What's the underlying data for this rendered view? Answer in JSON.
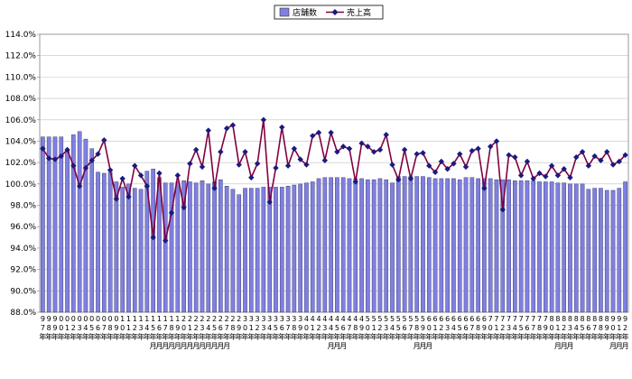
{
  "chart_data": {
    "type": "bar",
    "ylim": [
      88,
      114
    ],
    "y_ticks": [
      "88.0%",
      "90.0%",
      "92.0%",
      "94.0%",
      "96.0%",
      "98.0%",
      "100.0%",
      "102.0%",
      "104.0%",
      "106.0%",
      "108.0%",
      "110.0%",
      "112.0%",
      "114.0%"
    ],
    "grid": true,
    "legend_position": "top-center",
    "categories": [
      "97",
      "98",
      "99",
      "00",
      "01",
      "02",
      "03",
      "04",
      "05",
      "06",
      "07",
      "08",
      "09",
      "10",
      "11",
      "12",
      "13",
      "14",
      "15",
      "16",
      "17",
      "18",
      "19",
      "20",
      "21",
      "22",
      "23",
      "24",
      "25",
      "26",
      "27",
      "28",
      "29",
      "30",
      "31",
      "32",
      "33",
      "34",
      "35",
      "36",
      "37",
      "38",
      "39",
      "40",
      "41",
      "42",
      "43",
      "44",
      "45",
      "46",
      "47",
      "48",
      "49",
      "50",
      "51",
      "52",
      "53",
      "54",
      "55",
      "56",
      "57",
      "58",
      "59",
      "60",
      "61",
      "62",
      "63",
      "64",
      "65",
      "66",
      "67",
      "68",
      "69",
      "70",
      "71",
      "72",
      "73",
      "74",
      "75",
      "76",
      "77",
      "78",
      "79",
      "80",
      "81",
      "82",
      "83",
      "84",
      "85",
      "86",
      "87",
      "88",
      "89",
      "90",
      "91",
      "92"
    ],
    "x_labels": [
      {
        "chars": [
          "9",
          "7",
          "年"
        ]
      },
      {
        "chars": [
          "9",
          "8",
          "年"
        ]
      },
      {
        "chars": [
          "9",
          "9",
          "年"
        ]
      },
      {
        "chars": [
          "0",
          "0",
          "年"
        ]
      },
      {
        "chars": [
          "0",
          "1",
          "年"
        ]
      },
      {
        "chars": [
          "0",
          "2",
          "年"
        ]
      },
      {
        "chars": [
          "0",
          "3",
          "年"
        ]
      },
      {
        "chars": [
          "0",
          "4",
          "年"
        ]
      },
      {
        "chars": [
          "0",
          "5",
          "年"
        ]
      },
      {
        "chars": [
          "0",
          "6",
          "年"
        ]
      },
      {
        "chars": [
          "0",
          "7",
          "年"
        ]
      },
      {
        "chars": [
          "0",
          "8",
          "年"
        ]
      },
      {
        "chars": [
          "0",
          "9",
          "年"
        ]
      },
      {
        "chars": [
          "1",
          "0",
          "年"
        ]
      },
      {
        "chars": [
          "1",
          "1",
          "年"
        ]
      },
      {
        "chars": [
          "1",
          "2",
          "年"
        ]
      },
      {
        "chars": [
          "1",
          "3",
          "年"
        ]
      },
      {
        "chars": [
          "1",
          "4",
          "年"
        ]
      },
      {
        "chars": [
          "1",
          "5",
          "年"
        ]
      },
      {
        "chars": [
          "1",
          "6",
          "年"
        ]
      },
      {
        "chars": [
          "1",
          "7",
          "年"
        ]
      },
      {
        "chars": [
          "1",
          "8",
          "年"
        ]
      },
      {
        "chars": [
          "1",
          "9",
          "年"
        ]
      },
      {
        "chars": [
          "2",
          "0",
          "年"
        ]
      },
      {
        "chars": [
          "2",
          "1",
          "年"
        ]
      },
      {
        "chars": [
          "2",
          "2",
          "年"
        ]
      },
      {
        "chars": [
          "2",
          "3",
          "年"
        ]
      },
      {
        "chars": [
          "2",
          "4",
          "年"
        ]
      },
      {
        "chars": [
          "2",
          "5",
          "年"
        ]
      },
      {
        "chars": [
          "2",
          "6",
          "年"
        ]
      },
      {
        "chars": [
          "2",
          "7",
          "年"
        ]
      },
      {
        "chars": [
          "2",
          "8",
          "年"
        ]
      },
      {
        "chars": [
          "2",
          "9",
          "年"
        ]
      },
      {
        "chars": [
          "3",
          "0",
          "年"
        ]
      },
      {
        "chars": [
          "3",
          "1",
          "年"
        ]
      },
      {
        "chars": [
          "3",
          "2",
          "年"
        ]
      },
      {
        "chars": [
          "3",
          "3",
          "年"
        ]
      },
      {
        "chars": [
          "3",
          "4",
          "年"
        ]
      },
      {
        "chars": [
          "3",
          "5",
          "年"
        ]
      },
      {
        "chars": [
          "3",
          "6",
          "年"
        ]
      },
      {
        "chars": [
          "3",
          "7",
          "年"
        ]
      },
      {
        "chars": [
          "3",
          "8",
          "年"
        ]
      },
      {
        "chars": [
          "3",
          "9",
          "年"
        ]
      },
      {
        "chars": [
          "4",
          "0",
          "年"
        ]
      },
      {
        "chars": [
          "4",
          "1",
          "年"
        ]
      },
      {
        "chars": [
          "4",
          "2",
          "年"
        ]
      },
      {
        "chars": [
          "4",
          "3",
          "年"
        ]
      },
      {
        "chars": [
          "4",
          "4",
          "年"
        ]
      },
      {
        "chars": [
          "4",
          "5",
          "年"
        ]
      },
      {
        "chars": [
          "4",
          "6",
          "年"
        ]
      },
      {
        "chars": [
          "4",
          "7",
          "年"
        ]
      },
      {
        "chars": [
          "4",
          "8",
          "年"
        ]
      },
      {
        "chars": [
          "4",
          "9",
          "年"
        ]
      },
      {
        "chars": [
          "5",
          "0",
          "年"
        ]
      },
      {
        "chars": [
          "5",
          "1",
          "年"
        ]
      },
      {
        "chars": [
          "5",
          "2",
          "年"
        ]
      },
      {
        "chars": [
          "5",
          "3",
          "年"
        ]
      },
      {
        "chars": [
          "5",
          "4",
          "年"
        ]
      },
      {
        "chars": [
          "5",
          "5",
          "年"
        ]
      },
      {
        "chars": [
          "5",
          "6",
          "年"
        ]
      },
      {
        "chars": [
          "5",
          "7",
          "年"
        ]
      },
      {
        "chars": [
          "5",
          "8",
          "年"
        ]
      },
      {
        "chars": [
          "5",
          "9",
          "年"
        ]
      },
      {
        "chars": [
          "6",
          "0",
          "年"
        ]
      },
      {
        "chars": [
          "6",
          "1",
          "年"
        ]
      },
      {
        "chars": [
          "6",
          "2",
          "年"
        ]
      },
      {
        "chars": [
          "6",
          "3",
          "年"
        ]
      },
      {
        "chars": [
          "6",
          "4",
          "年"
        ]
      },
      {
        "chars": [
          "6",
          "5",
          "年"
        ]
      },
      {
        "chars": [
          "6",
          "6",
          "年"
        ]
      },
      {
        "chars": [
          "6",
          "7",
          "年"
        ]
      },
      {
        "chars": [
          "6",
          "8",
          "年"
        ]
      },
      {
        "chars": [
          "6",
          "9",
          "年"
        ]
      },
      {
        "chars": [
          "7",
          "0",
          "年"
        ]
      },
      {
        "chars": [
          "7",
          "1",
          "年"
        ]
      },
      {
        "chars": [
          "7",
          "2",
          "年"
        ]
      },
      {
        "chars": [
          "7",
          "3",
          "年"
        ]
      },
      {
        "chars": [
          "7",
          "4",
          "年"
        ]
      },
      {
        "chars": [
          "7",
          "5",
          "年"
        ]
      },
      {
        "chars": [
          "7",
          "6",
          "年"
        ]
      },
      {
        "chars": [
          "7",
          "7",
          "年"
        ]
      },
      {
        "chars": [
          "7",
          "8",
          "年"
        ]
      },
      {
        "chars": [
          "7",
          "9",
          "年"
        ]
      },
      {
        "chars": [
          "8",
          "0",
          "年"
        ]
      },
      {
        "chars": [
          "8",
          "1",
          "年"
        ]
      },
      {
        "chars": [
          "8",
          "2",
          "年"
        ]
      },
      {
        "chars": [
          "8",
          "3",
          "年"
        ]
      },
      {
        "chars": [
          "8",
          "4",
          "年"
        ]
      },
      {
        "chars": [
          "8",
          "5",
          "年"
        ]
      },
      {
        "chars": [
          "8",
          "6",
          "年"
        ]
      },
      {
        "chars": [
          "8",
          "7",
          "年"
        ]
      },
      {
        "chars": [
          "8",
          "8",
          "年"
        ]
      },
      {
        "chars": [
          "8",
          "9",
          "年"
        ]
      },
      {
        "chars": [
          "9",
          "0",
          "年"
        ]
      },
      {
        "chars": [
          "9",
          "1",
          "年"
        ]
      },
      {
        "chars": [
          "9",
          "2",
          "年"
        ]
      }
    ],
    "series": [
      {
        "name": "店舗数",
        "kind": "bar",
        "color": "#8080e0",
        "values": [
          104.4,
          104.4,
          104.4,
          104.4,
          103.2,
          104.6,
          104.9,
          104.2,
          103.3,
          101.1,
          101.0,
          101.1,
          100.2,
          99.7,
          100.0,
          99.6,
          99.5,
          101.2,
          101.4,
          100.6,
          100.1,
          100.1,
          100.2,
          100.3,
          100.2,
          100.1,
          100.3,
          100.0,
          100.2,
          100.4,
          99.8,
          99.5,
          99.0,
          99.6,
          99.6,
          99.6,
          99.7,
          99.7,
          99.7,
          99.7,
          99.8,
          99.9,
          100.0,
          100.1,
          100.2,
          100.5,
          100.6,
          100.6,
          100.6,
          100.6,
          100.5,
          100.5,
          100.5,
          100.4,
          100.4,
          100.5,
          100.4,
          100.1,
          100.7,
          100.7,
          100.7,
          100.7,
          100.7,
          100.6,
          100.5,
          100.5,
          100.5,
          100.5,
          100.4,
          100.6,
          100.6,
          100.5,
          100.5,
          100.5,
          100.4,
          100.4,
          100.4,
          100.3,
          100.3,
          100.3,
          100.3,
          100.2,
          100.2,
          100.2,
          100.1,
          100.1,
          100.0,
          100.0,
          100.0,
          99.5,
          99.6,
          99.6,
          99.4,
          99.4,
          99.6,
          100.2
        ]
      },
      {
        "name": "売上高",
        "kind": "line",
        "color": "#800040",
        "values": [
          103.3,
          102.4,
          102.3,
          102.6,
          103.2,
          101.7,
          99.8,
          101.5,
          102.2,
          102.8,
          104.1,
          101.3,
          98.6,
          100.5,
          98.8,
          101.7,
          100.8,
          99.8,
          95.0,
          101.0,
          94.7,
          97.3,
          100.8,
          97.8,
          101.9,
          103.2,
          101.6,
          105.0,
          99.6,
          103.0,
          105.2,
          105.5,
          101.8,
          103.0,
          100.6,
          101.9,
          106.0,
          98.3,
          101.5,
          105.3,
          101.7,
          103.3,
          102.3,
          101.8,
          104.5,
          104.8,
          102.2,
          104.8,
          103.0,
          103.5,
          103.3,
          100.2,
          103.8,
          103.5,
          103.0,
          103.2,
          104.6,
          101.8,
          100.4,
          103.2,
          100.5,
          102.8,
          102.9,
          101.7,
          101.1,
          102.1,
          101.4,
          101.9,
          102.8,
          101.6,
          103.1,
          103.3,
          99.6,
          103.5,
          104.0,
          97.6,
          102.7,
          102.5,
          100.8,
          102.1,
          100.5,
          101.0,
          100.7,
          101.7,
          100.8,
          101.4,
          100.6,
          102.5,
          103.0,
          101.7,
          102.6,
          102.2,
          103.0,
          101.8,
          102.1,
          102.7
        ]
      }
    ]
  },
  "legend": {
    "bar_label": "店舗数",
    "line_label": "売上高"
  },
  "x_suffix": "月"
}
